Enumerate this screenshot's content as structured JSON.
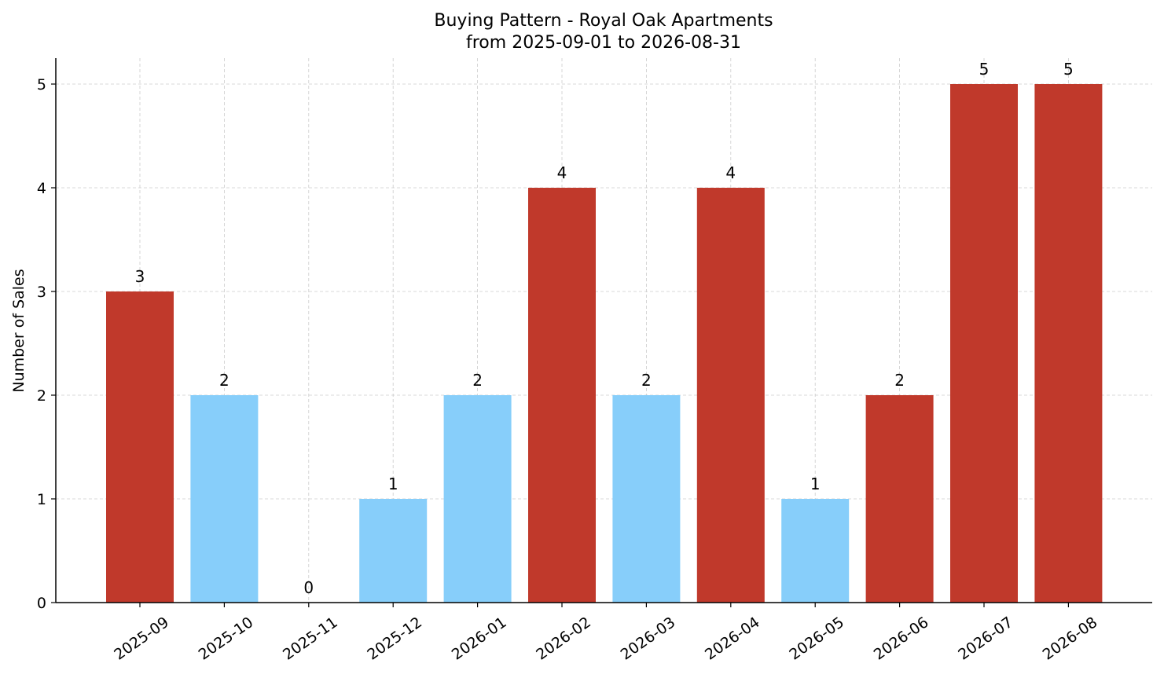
{
  "chart_data": {
    "type": "bar",
    "title": "Buying Pattern - Royal Oak Apartments",
    "subtitle": "from 2025-09-01 to 2026-08-31",
    "xlabel": "",
    "ylabel": "Number of Sales",
    "categories": [
      "2025-09",
      "2025-10",
      "2025-11",
      "2025-12",
      "2026-01",
      "2026-02",
      "2026-03",
      "2026-04",
      "2026-05",
      "2026-06",
      "2026-07",
      "2026-08"
    ],
    "values": [
      3,
      2,
      0,
      1,
      2,
      4,
      2,
      4,
      1,
      2,
      5,
      5
    ],
    "colors": [
      "#c0392b",
      "#87cefa",
      "#87cefa",
      "#87cefa",
      "#87cefa",
      "#c0392b",
      "#87cefa",
      "#c0392b",
      "#87cefa",
      "#c0392b",
      "#c0392b",
      "#c0392b"
    ],
    "ylim": [
      0,
      5.25
    ],
    "yticks": [
      0,
      1,
      2,
      3,
      4,
      5
    ],
    "grid": true,
    "legend": "none"
  }
}
